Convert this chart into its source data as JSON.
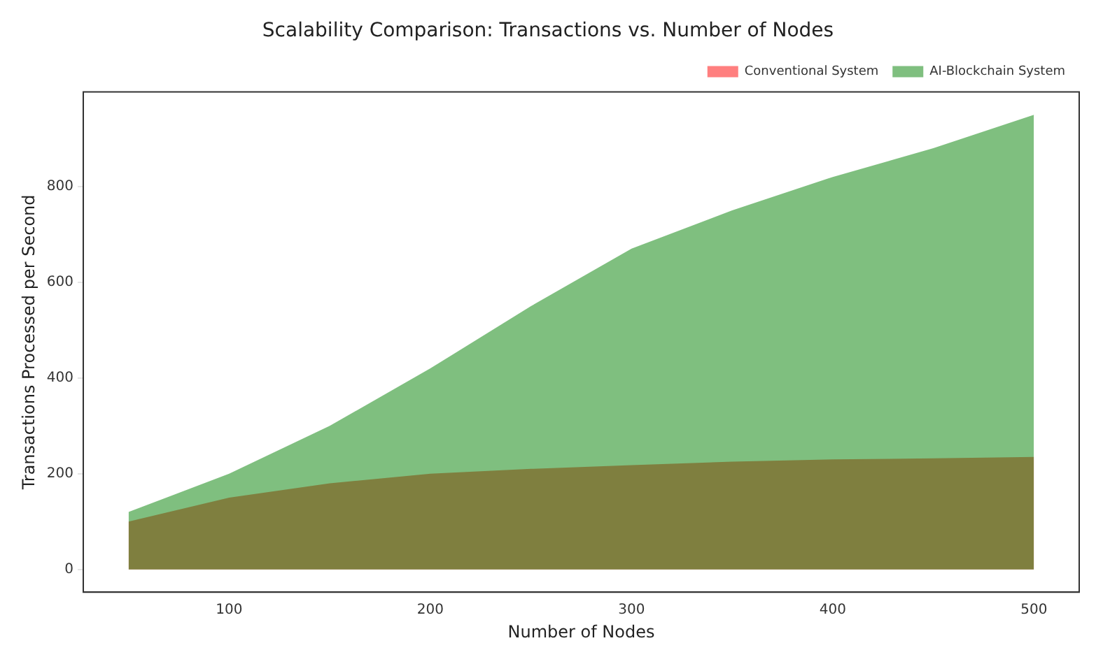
{
  "chart_data": {
    "type": "area",
    "title": "Scalability Comparison: Transactions vs. Number of Nodes",
    "xlabel": "Number of Nodes",
    "ylabel": "Transactions Processed per Second",
    "x": [
      50,
      100,
      150,
      200,
      250,
      300,
      350,
      400,
      450,
      500
    ],
    "series": [
      {
        "name": "Conventional System",
        "color": "#ff0000",
        "values": [
          100,
          150,
          180,
          200,
          210,
          218,
          225,
          230,
          232,
          235
        ]
      },
      {
        "name": "AI-Blockchain System",
        "color": "#008000",
        "values": [
          120,
          200,
          300,
          420,
          550,
          670,
          750,
          820,
          880,
          950
        ]
      }
    ],
    "xlim": [
      27.5,
      522.5
    ],
    "xticks": [
      100,
      200,
      300,
      400,
      500
    ],
    "ylim": [
      -47.5,
      997.5
    ],
    "yticks": [
      0,
      200,
      400,
      600,
      800
    ],
    "grid": false,
    "legend": "top right"
  }
}
